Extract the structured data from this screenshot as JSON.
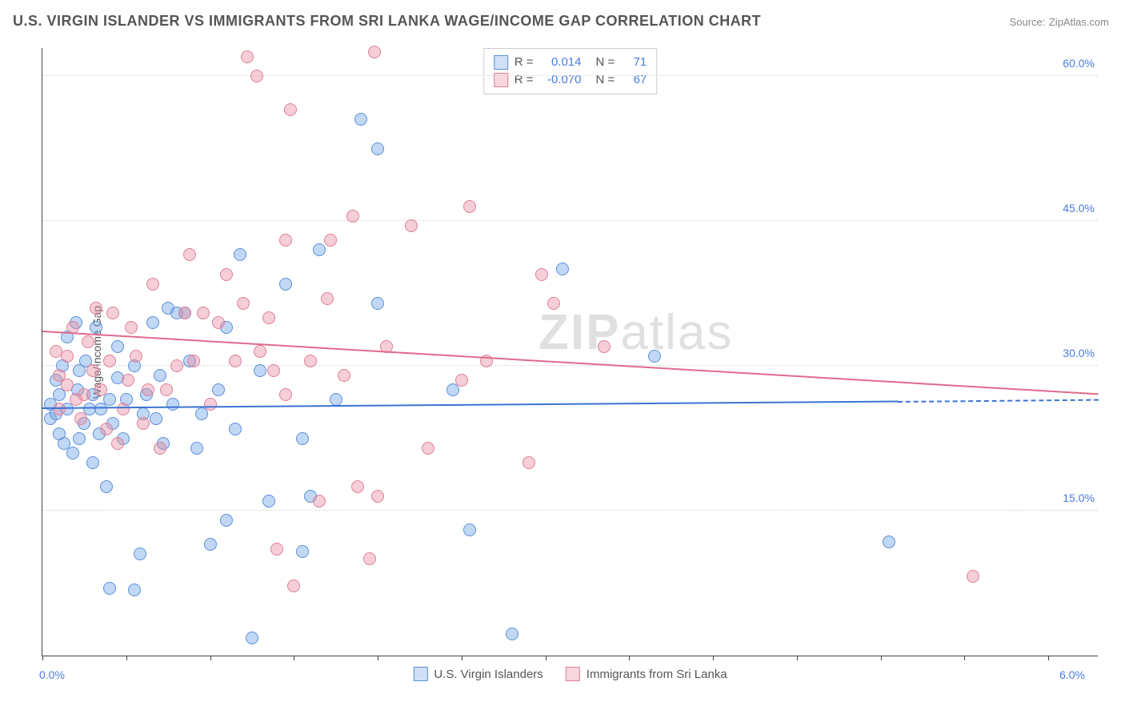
{
  "title": "U.S. VIRGIN ISLANDER VS IMMIGRANTS FROM SRI LANKA WAGE/INCOME GAP CORRELATION CHART",
  "source_label": "Source:",
  "source_value": "ZipAtlas.com",
  "ylabel": "Wage/Income Gap",
  "watermark_bold": "ZIP",
  "watermark_light": "atlas",
  "chart": {
    "type": "scatter",
    "xlim": [
      0.0,
      6.3
    ],
    "ylim": [
      0.0,
      63.0
    ],
    "ytick_values": [
      15.0,
      30.0,
      45.0,
      60.0
    ],
    "ytick_labels": [
      "15.0%",
      "30.0%",
      "45.0%",
      "60.0%"
    ],
    "xtick_values": [
      0.0,
      0.5,
      1.0,
      1.5,
      2.0,
      2.5,
      3.0,
      3.5,
      4.0,
      4.5,
      5.0,
      5.5,
      6.0
    ],
    "xmin_label": "0.0%",
    "xmax_label": "6.0%",
    "background_color": "#ffffff",
    "grid_color": "#dddddd",
    "axis_color": "#444444",
    "tick_label_color": "#4a7be0",
    "marker_radius": 8,
    "marker_border_width": 1.4,
    "series": [
      {
        "key": "usvi",
        "label": "U.S. Virgin Islanders",
        "fill": "#cfe0f7",
        "fill_alpha": "rgba(118,168,232,0.45)",
        "stroke": "#5b8fd8",
        "trend_color": "#3b73d1",
        "stats": {
          "R": "0.014",
          "N": "71"
        },
        "trend": {
          "x0": 0.0,
          "y0": 25.5,
          "x1": 5.1,
          "y1": 26.2,
          "dash_x1": 6.3,
          "dash_y1": 26.4
        },
        "points": [
          [
            0.05,
            26.0
          ],
          [
            0.05,
            24.5
          ],
          [
            0.08,
            28.5
          ],
          [
            0.1,
            23.0
          ],
          [
            0.1,
            27.0
          ],
          [
            0.12,
            30.0
          ],
          [
            0.13,
            22.0
          ],
          [
            0.15,
            25.5
          ],
          [
            0.15,
            33.0
          ],
          [
            0.18,
            21.0
          ],
          [
            0.08,
            25.0
          ],
          [
            0.2,
            34.5
          ],
          [
            0.21,
            27.5
          ],
          [
            0.22,
            22.5
          ],
          [
            0.22,
            29.5
          ],
          [
            0.25,
            24.0
          ],
          [
            0.26,
            30.5
          ],
          [
            0.28,
            25.5
          ],
          [
            0.3,
            20.0
          ],
          [
            0.3,
            27.0
          ],
          [
            0.32,
            34.0
          ],
          [
            0.34,
            23.0
          ],
          [
            0.35,
            25.5
          ],
          [
            0.38,
            17.5
          ],
          [
            0.4,
            26.5
          ],
          [
            0.42,
            24.0
          ],
          [
            0.45,
            28.8
          ],
          [
            0.45,
            32.0
          ],
          [
            0.48,
            22.5
          ],
          [
            0.5,
            26.5
          ],
          [
            0.4,
            7.0
          ],
          [
            0.55,
            6.8
          ],
          [
            0.55,
            30.0
          ],
          [
            0.58,
            10.5
          ],
          [
            0.6,
            25.0
          ],
          [
            0.62,
            27.0
          ],
          [
            0.66,
            34.5
          ],
          [
            0.68,
            24.5
          ],
          [
            0.7,
            29.0
          ],
          [
            0.72,
            22.0
          ],
          [
            0.75,
            36.0
          ],
          [
            0.78,
            26.0
          ],
          [
            0.8,
            35.5
          ],
          [
            0.85,
            35.5
          ],
          [
            0.88,
            30.5
          ],
          [
            0.92,
            21.5
          ],
          [
            0.95,
            25.0
          ],
          [
            1.0,
            11.5
          ],
          [
            1.05,
            27.5
          ],
          [
            1.1,
            34.0
          ],
          [
            1.15,
            23.5
          ],
          [
            1.1,
            14.0
          ],
          [
            1.18,
            41.5
          ],
          [
            1.25,
            1.8
          ],
          [
            1.3,
            29.5
          ],
          [
            1.45,
            38.5
          ],
          [
            1.55,
            22.5
          ],
          [
            1.55,
            10.8
          ],
          [
            1.6,
            16.5
          ],
          [
            1.65,
            42.0
          ],
          [
            1.75,
            26.5
          ],
          [
            1.9,
            55.5
          ],
          [
            2.0,
            36.5
          ],
          [
            2.0,
            52.5
          ],
          [
            2.45,
            27.5
          ],
          [
            2.55,
            13.0
          ],
          [
            2.8,
            2.2
          ],
          [
            3.1,
            40.0
          ],
          [
            3.65,
            31.0
          ],
          [
            5.05,
            11.8
          ],
          [
            1.35,
            16.0
          ]
        ]
      },
      {
        "key": "srilanka",
        "label": "Immigrants from Sri Lanka",
        "fill": "#f8d6de",
        "fill_alpha": "rgba(232,138,160,0.42)",
        "stroke": "#de7f99",
        "trend_color": "#e06a8a",
        "stats": {
          "R": "-0.070",
          "N": "67"
        },
        "trend": {
          "x0": 0.0,
          "y0": 33.5,
          "x1": 6.3,
          "y1": 27.0
        },
        "points": [
          [
            0.08,
            31.5
          ],
          [
            0.1,
            25.5
          ],
          [
            0.1,
            29.0
          ],
          [
            0.15,
            28.0
          ],
          [
            0.18,
            34.0
          ],
          [
            0.2,
            26.5
          ],
          [
            0.23,
            24.5
          ],
          [
            0.25,
            27.0
          ],
          [
            0.27,
            32.5
          ],
          [
            0.3,
            29.5
          ],
          [
            0.32,
            36.0
          ],
          [
            0.35,
            27.5
          ],
          [
            0.38,
            23.5
          ],
          [
            0.4,
            30.5
          ],
          [
            0.42,
            35.5
          ],
          [
            0.45,
            22.0
          ],
          [
            0.48,
            25.5
          ],
          [
            0.51,
            28.5
          ],
          [
            0.53,
            34.0
          ],
          [
            0.56,
            31.0
          ],
          [
            0.6,
            24.0
          ],
          [
            0.63,
            27.5
          ],
          [
            0.66,
            38.5
          ],
          [
            0.7,
            21.5
          ],
          [
            0.8,
            30.0
          ],
          [
            0.85,
            35.5
          ],
          [
            0.88,
            41.5
          ],
          [
            0.9,
            30.5
          ],
          [
            0.96,
            35.5
          ],
          [
            1.0,
            26.0
          ],
          [
            1.05,
            34.5
          ],
          [
            1.15,
            30.5
          ],
          [
            1.1,
            39.5
          ],
          [
            1.2,
            36.5
          ],
          [
            1.22,
            62.0
          ],
          [
            1.28,
            60.0
          ],
          [
            1.35,
            35.0
          ],
          [
            1.38,
            29.5
          ],
          [
            1.4,
            11.0
          ],
          [
            1.48,
            56.5
          ],
          [
            1.45,
            27.0
          ],
          [
            1.5,
            7.2
          ],
          [
            1.45,
            43.0
          ],
          [
            1.6,
            30.5
          ],
          [
            1.65,
            16.0
          ],
          [
            1.7,
            37.0
          ],
          [
            1.72,
            43.0
          ],
          [
            1.8,
            29.0
          ],
          [
            1.85,
            45.5
          ],
          [
            1.95,
            10.0
          ],
          [
            1.98,
            62.5
          ],
          [
            2.0,
            16.5
          ],
          [
            2.05,
            32.0
          ],
          [
            1.88,
            17.5
          ],
          [
            2.2,
            44.5
          ],
          [
            2.3,
            21.5
          ],
          [
            2.5,
            28.5
          ],
          [
            2.55,
            46.5
          ],
          [
            2.65,
            30.5
          ],
          [
            2.9,
            20.0
          ],
          [
            2.98,
            39.5
          ],
          [
            3.05,
            36.5
          ],
          [
            3.35,
            32.0
          ],
          [
            5.55,
            8.2
          ],
          [
            0.74,
            27.5
          ],
          [
            1.3,
            31.5
          ],
          [
            0.15,
            31.0
          ]
        ]
      }
    ]
  },
  "stats_box": {
    "R_label": "R =",
    "N_label": "N ="
  },
  "legend_marker_size": 18
}
